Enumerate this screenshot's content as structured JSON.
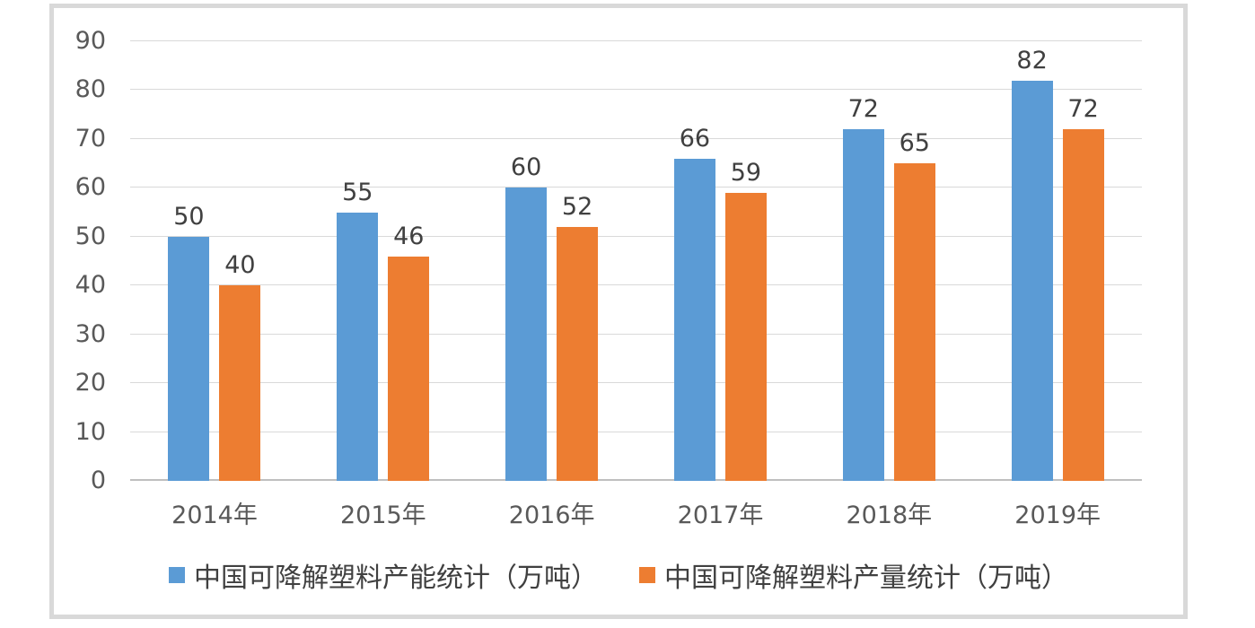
{
  "chart_data": {
    "type": "bar",
    "title": "",
    "xlabel": "",
    "ylabel": "",
    "categories": [
      "2014年",
      "2015年",
      "2016年",
      "2017年",
      "2018年",
      "2019年"
    ],
    "series": [
      {
        "name": "中国可降解塑料产能统计（万吨）",
        "color": "#5B9BD5",
        "values": [
          50,
          55,
          60,
          66,
          72,
          82
        ]
      },
      {
        "name": "中国可降解塑料产量统计（万吨）",
        "color": "#ED7D31",
        "values": [
          40,
          46,
          52,
          59,
          65,
          72
        ]
      }
    ],
    "ylim": [
      0,
      90
    ],
    "ytick_step": 10,
    "yticks": [
      "0",
      "10",
      "20",
      "30",
      "40",
      "50",
      "60",
      "70",
      "80",
      "90"
    ],
    "grid": true,
    "data_labels": true,
    "legend_position": "bottom"
  },
  "colors": {
    "background": "#ffffff",
    "frame_border": "#d9d9d9",
    "gridline": "#d9d9d9",
    "axis_line": "#bfbfbf",
    "tick_text": "#595959",
    "category_text": "#595959",
    "data_label_text": "#404040",
    "legend_text": "#404040",
    "series_capacity": "#5B9BD5",
    "series_output": "#ED7D31"
  }
}
